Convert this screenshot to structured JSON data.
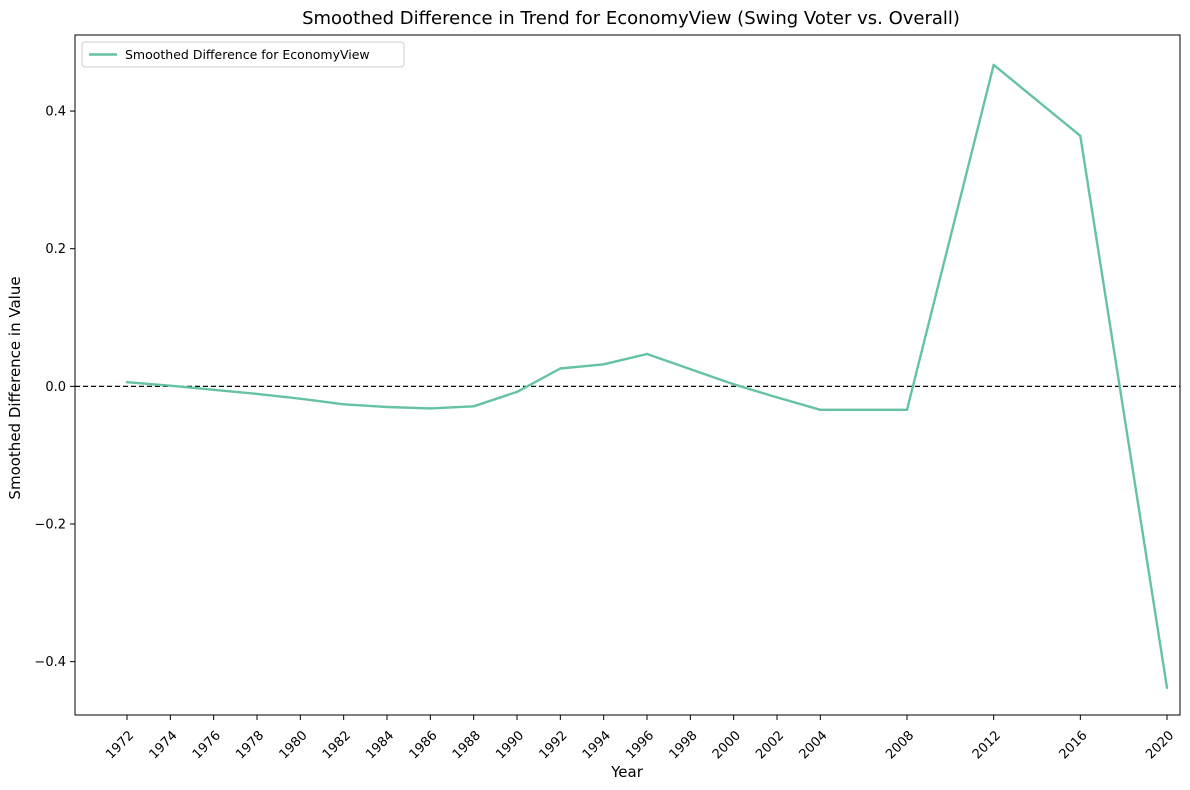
{
  "chart_data": {
    "type": "line",
    "title": "Smoothed Difference in Trend for EconomyView (Swing Voter vs. Overall)",
    "xlabel": "Year",
    "ylabel": "Smoothed Difference in Value",
    "x_ticks": [
      "1972",
      "1974",
      "1976",
      "1978",
      "1980",
      "1982",
      "1984",
      "1986",
      "1988",
      "1990",
      "1992",
      "1994",
      "1996",
      "1998",
      "2000",
      "2002",
      "2004",
      "2008",
      "2012",
      "2016",
      "2020"
    ],
    "y_ticks": [
      "0.4",
      "0.2",
      "0.0",
      "−0.2",
      "−0.4"
    ],
    "xlim": [
      1969.6,
      2020.6
    ],
    "ylim": [
      -0.4775,
      0.5105
    ],
    "grid": false,
    "reference_line": {
      "y": 0.0,
      "style": "dashed",
      "color": "#000000"
    },
    "legend": {
      "position": "top-left",
      "entries": [
        "Smoothed Difference for EconomyView"
      ]
    },
    "series": [
      {
        "name": "Smoothed Difference for EconomyView",
        "color": "#66c2a5",
        "x": [
          1972,
          1974,
          1976,
          1978,
          1980,
          1982,
          1984,
          1986,
          1988,
          1990,
          1992,
          1994,
          1996,
          1998,
          2000,
          2002,
          2004,
          2008,
          2012,
          2016,
          2020
        ],
        "y": [
          0.006,
          0.001,
          -0.005,
          -0.011,
          -0.018,
          -0.026,
          -0.03,
          -0.032,
          -0.029,
          -0.008,
          0.026,
          0.032,
          0.047,
          0.025,
          0.003,
          -0.016,
          -0.034,
          -0.034,
          0.467,
          0.364,
          -0.438
        ]
      }
    ]
  }
}
